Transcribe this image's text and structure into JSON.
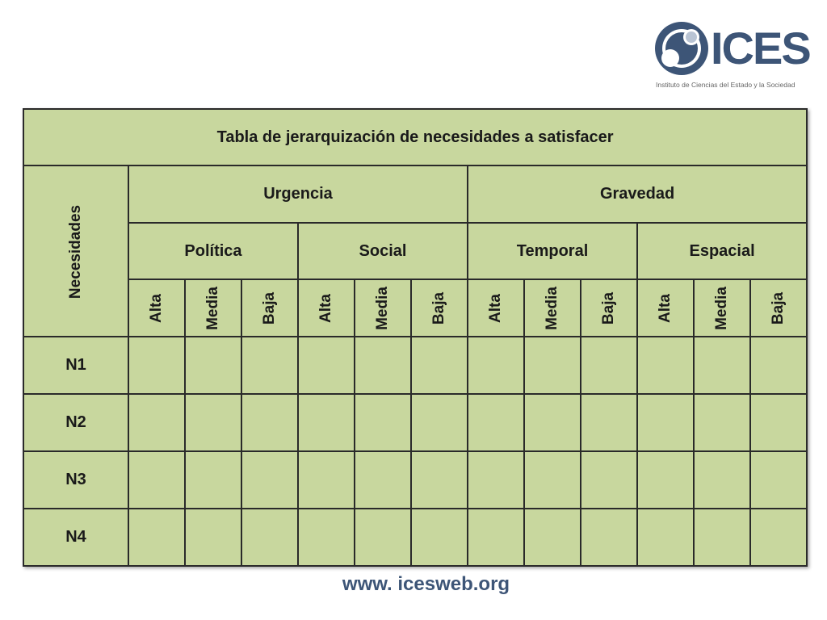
{
  "logo": {
    "name": "ICES",
    "subtitle": "Instituto de Ciencias del Estado y la Sociedad"
  },
  "table": {
    "title": "Tabla de jerarquización de necesidades a satisfacer",
    "row_header_label": "Necesidades",
    "groups": [
      "Urgencia",
      "Gravedad"
    ],
    "subgroups": [
      "Política",
      "Social",
      "Temporal",
      "Espacial"
    ],
    "levels": [
      "Alta",
      "Media",
      "Baja"
    ],
    "rows": [
      "N1",
      "N2",
      "N3",
      "N4"
    ]
  },
  "footer": {
    "url": "www. icesweb.org"
  },
  "colors": {
    "table_fill": "#c8d79e",
    "border": "#2a2a2a",
    "brand": "#3d5577"
  },
  "icons": {
    "logo_mark": "circles-logo-icon"
  }
}
